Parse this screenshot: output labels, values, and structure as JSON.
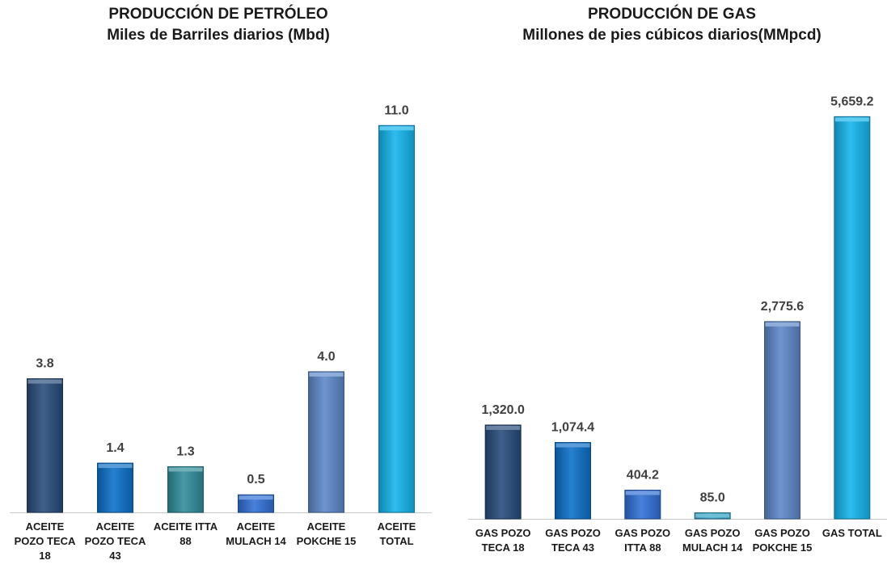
{
  "chart_data": [
    {
      "type": "bar",
      "title": "PRODUCCIÓN DE PETRÓLEO",
      "subtitle": "Miles de Barriles diarios (Mbd)",
      "categories": [
        [
          "ACEITE",
          "POZO TECA",
          "18"
        ],
        [
          "ACEITE",
          "POZO TECA",
          "43"
        ],
        [
          "ACEITE ITTA",
          "88"
        ],
        [
          "ACEITE",
          "MULACH 14"
        ],
        [
          "ACEITE",
          "POKCHE 15"
        ],
        [
          "ACEITE",
          "TOTAL"
        ]
      ],
      "values": [
        3.8,
        1.4,
        1.3,
        0.5,
        4.0,
        11.0
      ],
      "labels": [
        "3.8",
        "1.4",
        "1.3",
        "0.5",
        "4.0",
        "11.0"
      ],
      "colors": [
        "#264a7a",
        "#0a6fc9",
        "#2e8c9a",
        "#2f6fd6",
        "#5b87c9",
        "#12b4ec"
      ],
      "ylim": [
        0,
        12.5
      ],
      "grid": false,
      "legend": "none"
    },
    {
      "type": "bar",
      "title": "PRODUCCIÓN DE GAS",
      "subtitle": "Millones de pies cúbicos diarios(MMpcd)",
      "categories": [
        [
          "GAS POZO",
          "TECA 18"
        ],
        [
          "GAS POZO",
          "TECA 43"
        ],
        [
          "GAS POZO",
          "ITTA 88"
        ],
        [
          "GAS POZO",
          "MULACH 14"
        ],
        [
          "GAS POZO",
          "POKCHE 15"
        ],
        [
          "GAS TOTAL"
        ]
      ],
      "values": [
        1320.0,
        1074.4,
        404.2,
        85.0,
        2775.6,
        5659.2
      ],
      "labels": [
        "1,320.0",
        "1,074.4",
        "404.2",
        "85.0",
        "2,775.6",
        "5,659.2"
      ],
      "colors": [
        "#264a7a",
        "#0a6fc9",
        "#2f6fd6",
        "#2e9fc4",
        "#5b87c9",
        "#12b4ec"
      ],
      "ylim": [
        0,
        6300
      ],
      "grid": false,
      "legend": "none"
    }
  ]
}
